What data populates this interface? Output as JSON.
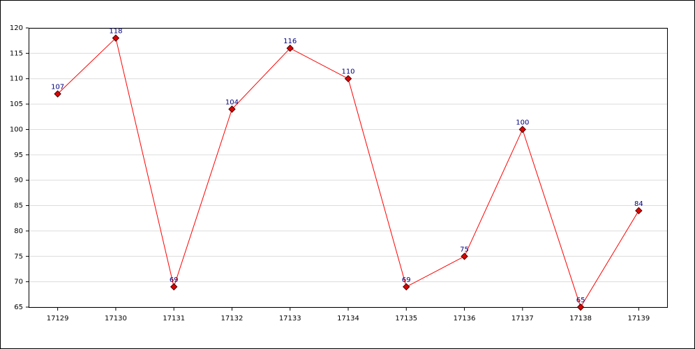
{
  "chart_data": {
    "type": "line",
    "categories": [
      "17129",
      "17130",
      "17131",
      "17132",
      "17133",
      "17134",
      "17135",
      "17136",
      "17137",
      "17138",
      "17139"
    ],
    "values": [
      107,
      118,
      69,
      104,
      116,
      110,
      69,
      75,
      100,
      65,
      84
    ],
    "color": "#ff0000",
    "marker_color": "#e00000",
    "label_color": "#000080",
    "ylim": [
      65,
      120
    ],
    "yticks": [
      65,
      70,
      75,
      80,
      85,
      90,
      95,
      100,
      105,
      110,
      115,
      120
    ],
    "grid": true
  }
}
